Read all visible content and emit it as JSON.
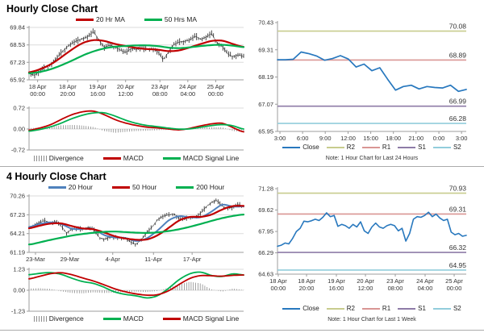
{
  "colors": {
    "red_ma": "#C00000",
    "green_ma": "#00B050",
    "blue_ma": "#4F81BD",
    "close_blue": "#2878BE",
    "r2_olive": "#C8CC8E",
    "r1_salmon": "#D99694",
    "s1_purple": "#8E7BA7",
    "s2_teal": "#92CDDC",
    "divergence_gray": "#8C8C8C",
    "candle_black": "#1A1A1A",
    "grid": "#DBDBDB",
    "axis": "#9C9C9C"
  },
  "chart_data": [
    {
      "type": "line",
      "title": "Hourly Close Chart",
      "ylim": [
        65.92,
        69.84
      ],
      "yticks": [
        "69.84",
        "68.53",
        "67.23",
        "65.92"
      ],
      "xticks": [
        {
          "label": [
            "18 Apr",
            "00:00"
          ],
          "f": 0.04
        },
        {
          "label": [
            "18 Apr",
            "20:00"
          ],
          "f": 0.18
        },
        {
          "label": [
            "19 Apr",
            "16:00"
          ],
          "f": 0.32
        },
        {
          "label": [
            "20 Apr",
            "12:00"
          ],
          "f": 0.45
        },
        {
          "label": [
            "23 Apr",
            "08:00"
          ],
          "f": 0.61
        },
        {
          "label": [
            "24 Apr",
            "04:00"
          ],
          "f": 0.74
        },
        {
          "label": [
            "25 Apr",
            "00:00"
          ],
          "f": 0.87
        }
      ],
      "grid": true,
      "legend": [
        {
          "label": "20 Hr MA",
          "color": "#C00000"
        },
        {
          "label": "50 Hrs MA",
          "color": "#00B050"
        }
      ],
      "series": [
        {
          "name": "Close",
          "color": "#1A1A1A",
          "style": "hl-bars",
          "amp": 0.25,
          "n": 115,
          "values": [
            66.4,
            66.25,
            66.55,
            66.85,
            67.05,
            67.45,
            67.95,
            68.35,
            68.65,
            68.85,
            69.0,
            69.15,
            69.55,
            68.9,
            68.35,
            68.5,
            68.4,
            68.15,
            67.95,
            68.25,
            68.2,
            68.3,
            68.2,
            68.25,
            68.05,
            67.4,
            68.0,
            68.55,
            68.75,
            68.8,
            68.9,
            69.2,
            68.95,
            69.1,
            69.4,
            68.7,
            68.45,
            67.85,
            67.65,
            67.8,
            67.65
          ]
        },
        {
          "name": "20 Hr MA",
          "color": "#C00000",
          "width": 2.2,
          "smooth": 3,
          "n": 90,
          "values": [
            66.45,
            66.7,
            67.05,
            67.6,
            68.2,
            68.7,
            68.92,
            68.85,
            68.6,
            68.45,
            68.3,
            68.22,
            68.18,
            68.05,
            68.1,
            68.35,
            68.6,
            68.85,
            68.88,
            68.6,
            68.35
          ]
        },
        {
          "name": "50 Hrs MA",
          "color": "#00B050",
          "width": 2.2,
          "smooth": 3,
          "n": 90,
          "values": [
            66.4,
            66.5,
            66.7,
            67.0,
            67.35,
            67.75,
            68.05,
            68.28,
            68.4,
            68.45,
            68.5,
            68.5,
            68.45,
            68.32,
            68.28,
            68.35,
            68.45,
            68.52,
            68.55,
            68.48,
            68.35
          ]
        }
      ]
    },
    {
      "type": "macd",
      "ylim": [
        -0.72,
        0.72
      ],
      "yticks": [
        "0.72",
        "0.00",
        "-0.72"
      ],
      "grid": true,
      "legend": [
        {
          "label": "Divergence",
          "color": "#8C8C8C",
          "type": "bars"
        },
        {
          "label": "MACD",
          "color": "#C00000"
        },
        {
          "label": "MACD Signal Line",
          "color": "#00B050"
        }
      ],
      "series": [
        {
          "name": "Divergence",
          "color": "#8C8C8C",
          "style": "zero-bars",
          "n": 95,
          "values": [
            0.03,
            0.05,
            0.07,
            0.13,
            0.14,
            0.12,
            0.07,
            -0.07,
            -0.13,
            -0.1,
            -0.07,
            -0.06,
            -0.04,
            -0.03,
            -0.03,
            0.02,
            0.05,
            0.06,
            0.06,
            -0.07,
            -0.1
          ]
        },
        {
          "name": "MACD",
          "color": "#C00000",
          "width": 1.8,
          "smooth": 3,
          "n": 90,
          "values": [
            -0.05,
            0.03,
            0.14,
            0.33,
            0.5,
            0.6,
            0.63,
            0.5,
            0.32,
            0.2,
            0.12,
            0.06,
            0.04,
            0.0,
            -0.04,
            0.02,
            0.11,
            0.18,
            0.22,
            0.05,
            -0.12
          ]
        },
        {
          "name": "MACD Signal Line",
          "color": "#00B050",
          "width": 1.8,
          "smooth": 3,
          "n": 90,
          "values": [
            -0.08,
            -0.02,
            0.07,
            0.2,
            0.36,
            0.48,
            0.56,
            0.57,
            0.45,
            0.3,
            0.19,
            0.12,
            0.08,
            0.03,
            -0.01,
            0.0,
            0.06,
            0.12,
            0.16,
            0.12,
            -0.02
          ]
        }
      ]
    },
    {
      "type": "line",
      "note": "Note: 1 Hour Chart for Last 24 Hours",
      "ylim": [
        65.95,
        70.43
      ],
      "yticks": [
        "70.43",
        "69.31",
        "68.19",
        "67.07",
        "65.95"
      ],
      "xticks": [
        {
          "label": "3:00",
          "f": 0.013
        },
        {
          "label": "6:00",
          "f": 0.133
        },
        {
          "label": "9:00",
          "f": 0.253
        },
        {
          "label": "12:00",
          "f": 0.374
        },
        {
          "label": "15:00",
          "f": 0.494
        },
        {
          "label": "18:00",
          "f": 0.614
        },
        {
          "label": "21:00",
          "f": 0.734
        },
        {
          "label": "0:00",
          "f": 0.855
        },
        {
          "label": "3:00",
          "f": 0.975
        }
      ],
      "grid": false,
      "pivots": [
        {
          "name": "R2",
          "label": "70.08",
          "value": 70.08,
          "color": "#C8CC8E"
        },
        {
          "name": "R1",
          "label": "68.89",
          "value": 68.89,
          "color": "#D99694"
        },
        {
          "name": "S1",
          "label": "66.99",
          "value": 66.99,
          "color": "#8E7BA7"
        },
        {
          "name": "S2",
          "label": "66.28",
          "value": 66.28,
          "color": "#92CDDC"
        }
      ],
      "legend": [
        {
          "label": "Close",
          "color": "#2878BE"
        },
        {
          "label": "R2",
          "color": "#C8CC8E"
        },
        {
          "label": "R1",
          "color": "#D99694"
        },
        {
          "label": "S1",
          "color": "#8E7BA7"
        },
        {
          "label": "S2",
          "color": "#92CDDC"
        }
      ],
      "series": [
        {
          "name": "Close",
          "color": "#2878BE",
          "width": 1.7,
          "values": [
            68.9,
            68.9,
            68.92,
            69.22,
            69.15,
            69.05,
            68.88,
            68.95,
            69.07,
            68.93,
            68.6,
            68.72,
            68.45,
            68.57,
            68.1,
            67.65,
            67.8,
            67.85,
            67.7,
            67.8,
            67.76,
            67.74,
            67.85,
            67.6,
            67.68
          ]
        }
      ]
    },
    {
      "type": "line",
      "title": "4 Hourly Close Chart",
      "ylim": [
        61.19,
        70.26
      ],
      "yticks": [
        "70.26",
        "67.23",
        "64.21",
        "61.19"
      ],
      "xticks": [
        {
          "label": "23-Mar",
          "f": 0.03
        },
        {
          "label": "29-Mar",
          "f": 0.19
        },
        {
          "label": "4-Apr",
          "f": 0.39
        },
        {
          "label": "11-Apr",
          "f": 0.58
        },
        {
          "label": "17-Apr",
          "f": 0.76
        }
      ],
      "grid": true,
      "legend": [
        {
          "label": "20 Hour",
          "color": "#4F81BD"
        },
        {
          "label": "50 Hour",
          "color": "#C00000"
        },
        {
          "label": "200 Hour",
          "color": "#00B050"
        }
      ],
      "series": [
        {
          "name": "Close",
          "color": "#1A1A1A",
          "style": "hl-bars",
          "amp": 0.45,
          "n": 110,
          "values": [
            65.1,
            65.6,
            66.0,
            66.3,
            65.9,
            66.2,
            65.4,
            64.3,
            64.9,
            65.0,
            64.9,
            65.2,
            65.0,
            63.6,
            63.3,
            63.6,
            63.5,
            63.6,
            63.4,
            62.8,
            62.5,
            63.3,
            64.4,
            65.3,
            66.5,
            67.0,
            67.2,
            67.4,
            66.6,
            66.5,
            66.9,
            66.8,
            67.5,
            68.5,
            69.2,
            69.6,
            68.6,
            68.3,
            68.4,
            68.9,
            68.6
          ]
        },
        {
          "name": "20 Hour",
          "color": "#4F81BD",
          "width": 2.0,
          "smooth": 2,
          "n": 90,
          "values": [
            65.2,
            65.8,
            66.05,
            65.8,
            64.9,
            64.95,
            65.05,
            63.9,
            63.55,
            63.55,
            62.9,
            63.4,
            64.7,
            66.4,
            67.1,
            66.8,
            66.75,
            67.7,
            69.0,
            68.5,
            68.6
          ]
        },
        {
          "name": "50 Hour",
          "color": "#C00000",
          "width": 2.2,
          "smooth": 3,
          "n": 90,
          "values": [
            65.0,
            65.5,
            65.85,
            65.9,
            65.4,
            65.0,
            64.95,
            64.4,
            63.75,
            63.4,
            63.2,
            63.2,
            63.9,
            65.1,
            66.4,
            66.95,
            66.85,
            67.2,
            68.1,
            68.7,
            68.65
          ]
        },
        {
          "name": "200 Hour",
          "color": "#00B050",
          "width": 2.2,
          "smooth": 3,
          "n": 90,
          "values": [
            62.4,
            62.8,
            63.2,
            63.55,
            63.9,
            64.15,
            64.35,
            64.5,
            64.55,
            64.45,
            64.35,
            64.3,
            64.4,
            64.6,
            64.9,
            65.3,
            65.75,
            66.25,
            66.7,
            67.05,
            67.3
          ]
        }
      ]
    },
    {
      "type": "macd",
      "ylim": [
        -1.23,
        1.23
      ],
      "yticks": [
        "1.23",
        "0.00",
        "-1.23"
      ],
      "grid": true,
      "legend": [
        {
          "label": "Divergence",
          "color": "#8C8C8C",
          "type": "bars"
        },
        {
          "label": "MACD",
          "color": "#00B050"
        },
        {
          "label": "MACD Signal Line",
          "color": "#C00000"
        }
      ],
      "series": [
        {
          "name": "Divergence",
          "color": "#8C8C8C",
          "style": "zero-bars",
          "n": 95,
          "values": [
            0.1,
            0.12,
            0.08,
            -0.06,
            -0.16,
            -0.18,
            -0.12,
            -0.16,
            -0.14,
            -0.1,
            -0.08,
            -0.1,
            -0.04,
            0.15,
            0.35,
            0.5,
            0.4,
            0.05,
            -0.08,
            0.1,
            0.02
          ]
        },
        {
          "name": "MACD",
          "color": "#00B050",
          "width": 1.8,
          "smooth": 3,
          "n": 90,
          "values": [
            0.9,
            1.0,
            1.05,
            0.95,
            0.7,
            0.5,
            0.42,
            0.18,
            -0.12,
            -0.25,
            -0.32,
            -0.48,
            -0.35,
            0.1,
            0.65,
            1.0,
            1.1,
            0.85,
            0.78,
            1.0,
            0.88
          ]
        },
        {
          "name": "MACD Signal Line",
          "color": "#C00000",
          "width": 1.8,
          "smooth": 3,
          "n": 90,
          "values": [
            0.65,
            0.82,
            0.98,
            1.05,
            0.92,
            0.72,
            0.55,
            0.32,
            0.08,
            -0.1,
            -0.22,
            -0.3,
            -0.28,
            -0.05,
            0.35,
            0.72,
            0.88,
            0.85,
            0.82,
            0.88,
            0.9
          ]
        }
      ]
    },
    {
      "type": "line",
      "note": "Note: 1 Hour Chart for Last 1 Week",
      "ylim": [
        64.63,
        71.28
      ],
      "yticks": [
        "71.28",
        "69.62",
        "67.95",
        "66.29",
        "64.63"
      ],
      "xticks": [
        {
          "label": [
            "18 Apr",
            "00:00"
          ],
          "f": 0.004
        },
        {
          "label": [
            "18 Apr",
            "20:00"
          ],
          "f": 0.154
        },
        {
          "label": [
            "19 Apr",
            "16:00"
          ],
          "f": 0.312
        },
        {
          "label": [
            "20 Apr",
            "12:00"
          ],
          "f": 0.466
        },
        {
          "label": [
            "23 Apr",
            "08:00"
          ],
          "f": 0.624
        },
        {
          "label": [
            "24 Apr",
            "04:00"
          ],
          "f": 0.782
        },
        {
          "label": [
            "25 Apr",
            "00:00"
          ],
          "f": 0.936
        }
      ],
      "grid": false,
      "pivots": [
        {
          "name": "R2",
          "label": "70.93",
          "value": 70.93,
          "color": "#C8CC8E"
        },
        {
          "name": "R1",
          "label": "69.31",
          "value": 69.31,
          "color": "#D99694"
        },
        {
          "name": "S1",
          "label": "66.32",
          "value": 66.32,
          "color": "#8E7BA7"
        },
        {
          "name": "S2",
          "label": "64.95",
          "value": 64.95,
          "color": "#92CDDC"
        }
      ],
      "legend": [
        {
          "label": "Close",
          "color": "#2878BE"
        },
        {
          "label": "R2",
          "color": "#C8CC8E"
        },
        {
          "label": "R1",
          "color": "#D99694"
        },
        {
          "label": "S1",
          "color": "#8E7BA7"
        },
        {
          "label": "S2",
          "color": "#92CDDC"
        }
      ],
      "series": [
        {
          "name": "Close",
          "color": "#2878BE",
          "width": 1.6,
          "values": [
            66.8,
            66.88,
            67.05,
            66.98,
            67.4,
            67.95,
            68.2,
            68.75,
            68.7,
            68.78,
            68.9,
            68.8,
            69.05,
            69.4,
            69.1,
            69.2,
            68.35,
            68.5,
            68.4,
            68.2,
            68.5,
            68.3,
            68.7,
            68.0,
            67.8,
            68.3,
            68.6,
            68.3,
            68.2,
            68.4,
            68.5,
            68.4,
            68.0,
            68.2,
            67.2,
            67.8,
            68.9,
            69.1,
            69.05,
            69.2,
            69.45,
            69.1,
            69.3,
            69.0,
            68.8,
            68.9,
            67.9,
            67.7,
            67.8,
            67.58,
            67.65
          ]
        }
      ]
    }
  ]
}
